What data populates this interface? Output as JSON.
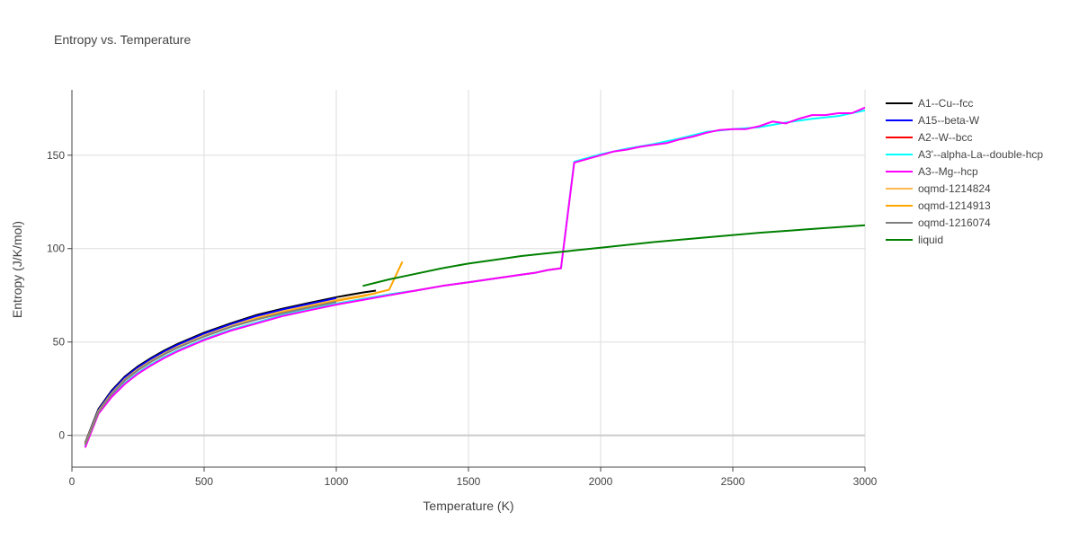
{
  "chart_data": {
    "type": "line",
    "title": "Entropy vs. Temperature",
    "xlabel": "Temperature (K)",
    "ylabel": "Entropy (J/K/mol)",
    "xlim": [
      0,
      3000
    ],
    "ylim": [
      -17,
      185
    ],
    "xticks": [
      0,
      500,
      1000,
      1500,
      2000,
      2500,
      3000
    ],
    "yticks": [
      0,
      50,
      100,
      150
    ],
    "xtick_labels": [
      "0",
      "500",
      "1000",
      "1500",
      "2000",
      "2500",
      "3000"
    ],
    "ytick_labels": [
      "0",
      "50",
      "100",
      "150"
    ],
    "grid": true,
    "legend_position": "right",
    "series": [
      {
        "name": "A1--Cu--fcc",
        "color": "#000000",
        "x": [
          50,
          100,
          150,
          200,
          250,
          300,
          350,
          400,
          500,
          600,
          700,
          800,
          900,
          1000,
          1100,
          1150
        ],
        "y": [
          -4,
          14,
          24,
          31.5,
          37,
          41.5,
          45.5,
          49,
          55,
          60,
          64.5,
          68,
          71,
          74,
          76.5,
          77.5
        ]
      },
      {
        "name": "A15--beta-W",
        "color": "#0000ff",
        "x": [
          50,
          100,
          150,
          200,
          250,
          300,
          350,
          400,
          500,
          600,
          700,
          800,
          900,
          1000
        ],
        "y": [
          -4.5,
          13.5,
          23.5,
          31,
          36.5,
          41,
          45,
          48.5,
          54.5,
          59.5,
          64,
          67.5,
          70.5,
          73.5
        ]
      },
      {
        "name": "A2--W--bcc",
        "color": "#ff0000",
        "x": [
          50,
          100,
          150,
          200,
          250,
          300,
          350,
          400,
          500,
          600,
          700,
          800,
          900,
          1000,
          1100,
          1200,
          1300,
          1400,
          1500,
          1600,
          1700,
          1750,
          1800,
          1850
        ],
        "y": [
          -6,
          12,
          21,
          28,
          33.5,
          38,
          42,
          45.5,
          51.5,
          56.5,
          60.5,
          64.5,
          67.5,
          70.5,
          73,
          75.5,
          77.5,
          80,
          82,
          84,
          86,
          87,
          88.5,
          89.5
        ]
      },
      {
        "name": "A3'--alpha-La--double-hcp",
        "color": "#00ffff",
        "x": [
          50,
          100,
          150,
          200,
          250,
          300,
          350,
          400,
          500,
          600,
          700,
          800,
          900,
          1000,
          1100,
          1200,
          1300,
          1400,
          1500,
          1600,
          1700,
          1750,
          1800,
          1850,
          1900,
          2000,
          2100,
          2200,
          2300,
          2400,
          2500,
          2600,
          2700,
          2800,
          2900,
          3000
        ],
        "y": [
          -6,
          12,
          21,
          28,
          33.5,
          38,
          42,
          45.5,
          51.5,
          56.5,
          60.5,
          64.5,
          67.5,
          70.5,
          73,
          75.5,
          77.5,
          80,
          82,
          84,
          86,
          87,
          88.5,
          89.5,
          146.5,
          150.5,
          153.5,
          156,
          159,
          162.5,
          164,
          165,
          167.5,
          169.5,
          171,
          174
        ]
      },
      {
        "name": "A3--Mg--hcp",
        "color": "#ff00ff",
        "x": [
          50,
          100,
          150,
          200,
          250,
          300,
          350,
          400,
          500,
          600,
          700,
          800,
          900,
          1000,
          1100,
          1200,
          1300,
          1400,
          1500,
          1600,
          1700,
          1750,
          1800,
          1850,
          1900,
          1950,
          2000,
          2050,
          2100,
          2150,
          2200,
          2250,
          2300,
          2350,
          2400,
          2450,
          2500,
          2550,
          2600,
          2650,
          2700,
          2750,
          2800,
          2850,
          2900,
          2950,
          3000
        ],
        "y": [
          -6.5,
          11.5,
          20.5,
          27.5,
          33,
          37.5,
          41.5,
          45,
          51,
          56,
          60,
          64,
          67,
          70,
          72.5,
          75,
          77.5,
          80,
          82,
          84,
          86,
          87,
          88.5,
          89.5,
          146,
          148,
          150,
          152,
          153,
          154.5,
          155.5,
          156.5,
          158.5,
          160,
          162,
          163.5,
          164,
          164,
          165.5,
          168,
          167,
          169.5,
          171.5,
          171.5,
          172.5,
          172.5,
          175.5
        ]
      },
      {
        "name": "oqmd-1214824",
        "color": "#ffb84d",
        "x": [
          50,
          100,
          150,
          200,
          250,
          300,
          350,
          400,
          500,
          600,
          700,
          800,
          900,
          1000,
          1100,
          1150
        ],
        "y": [
          -4.5,
          13,
          22.5,
          30,
          35.5,
          40,
          44,
          47.5,
          53.5,
          58.5,
          63,
          66.5,
          69.5,
          72.5,
          75,
          76
        ]
      },
      {
        "name": "oqmd-1214913",
        "color": "#ffa500",
        "x": [
          50,
          100,
          150,
          200,
          250,
          300,
          350,
          400,
          500,
          600,
          700,
          800,
          900,
          1000,
          1100,
          1200,
          1250
        ],
        "y": [
          -5,
          12.5,
          22,
          29.5,
          35,
          39.5,
          43.5,
          47,
          53,
          58,
          62.5,
          66,
          69,
          72,
          74.5,
          78,
          93
        ]
      },
      {
        "name": "oqmd-1216074",
        "color": "#808080",
        "x": [
          50,
          100,
          150,
          200,
          250,
          300,
          350,
          400,
          500,
          600,
          700,
          800,
          900,
          1000
        ],
        "y": [
          -5,
          12.5,
          22,
          29.5,
          35,
          39.5,
          43.5,
          47,
          53,
          58,
          62,
          65.5,
          68.5,
          71.5
        ]
      },
      {
        "name": "liquid",
        "color": "#008000",
        "x": [
          1100,
          1200,
          1300,
          1400,
          1500,
          1600,
          1700,
          1800,
          1900,
          2000,
          2200,
          2400,
          2600,
          2800,
          3000
        ],
        "y": [
          80,
          83.5,
          86.5,
          89.5,
          92,
          94,
          96,
          97.5,
          99,
          100.5,
          103.5,
          106,
          108.5,
          110.5,
          112.5
        ]
      }
    ]
  }
}
